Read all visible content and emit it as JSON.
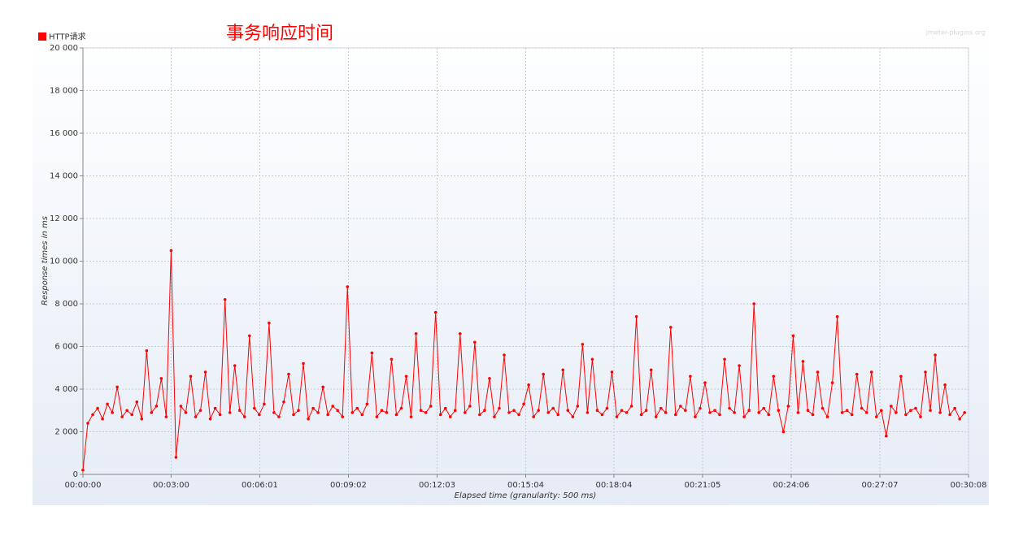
{
  "chart_data": {
    "type": "line",
    "title": "事务响应时间",
    "watermark": "jmeter-plugins.org",
    "x_label": "Elapsed time (granularity: 500 ms)",
    "y_label": "Response times in ms",
    "xlim": [
      0,
      1808
    ],
    "ylim": [
      0,
      20000
    ],
    "xticks": [
      {
        "value": 0,
        "label": "00:00:00"
      },
      {
        "value": 180,
        "label": "00:03:00"
      },
      {
        "value": 361,
        "label": "00:06:01"
      },
      {
        "value": 542,
        "label": "00:09:02"
      },
      {
        "value": 723,
        "label": "00:12:03"
      },
      {
        "value": 904,
        "label": "00:15:04"
      },
      {
        "value": 1084,
        "label": "00:18:04"
      },
      {
        "value": 1265,
        "label": "00:21:05"
      },
      {
        "value": 1446,
        "label": "00:24:06"
      },
      {
        "value": 1627,
        "label": "00:27:07"
      },
      {
        "value": 1808,
        "label": "00:30:08"
      }
    ],
    "yticks": [
      0,
      {
        "value": 2000,
        "label": "2 000"
      },
      {
        "value": 4000,
        "label": "4 000"
      },
      {
        "value": 6000,
        "label": "6 000"
      },
      {
        "value": 8000,
        "label": "8 000"
      },
      {
        "value": 10000,
        "label": "10 000"
      },
      {
        "value": 12000,
        "label": "12 000"
      },
      {
        "value": 14000,
        "label": "14 000"
      },
      {
        "value": 16000,
        "label": "16 000"
      },
      {
        "value": 18000,
        "label": "18 000"
      },
      {
        "value": 20000,
        "label": "20 000"
      }
    ],
    "grid": true,
    "legend": "top-left",
    "x": [
      0,
      10,
      20,
      30,
      40,
      50,
      60,
      70,
      80,
      90,
      100,
      110,
      120,
      130,
      140,
      150,
      160,
      170,
      180,
      190,
      200,
      210,
      220,
      230,
      240,
      250,
      260,
      270,
      280,
      290,
      300,
      310,
      320,
      330,
      340,
      350,
      360,
      370,
      380,
      390,
      400,
      410,
      420,
      430,
      440,
      450,
      460,
      470,
      480,
      490,
      500,
      510,
      520,
      530,
      540,
      550,
      560,
      570,
      580,
      590,
      600,
      610,
      620,
      630,
      640,
      650,
      660,
      670,
      680,
      690,
      700,
      710,
      720,
      730,
      740,
      750,
      760,
      770,
      780,
      790,
      800,
      810,
      820,
      830,
      840,
      850,
      860,
      870,
      880,
      890,
      900,
      910,
      920,
      930,
      940,
      950,
      960,
      970,
      980,
      990,
      1000,
      1010,
      1020,
      1030,
      1040,
      1050,
      1060,
      1070,
      1080,
      1090,
      1100,
      1110,
      1120,
      1130,
      1140,
      1150,
      1160,
      1170,
      1180,
      1190,
      1200,
      1210,
      1220,
      1230,
      1240,
      1250,
      1260,
      1270,
      1280,
      1290,
      1300,
      1310,
      1320,
      1330,
      1340,
      1350,
      1360,
      1370,
      1380,
      1390,
      1400,
      1410,
      1420,
      1430,
      1440,
      1450,
      1460,
      1470,
      1480,
      1490,
      1500,
      1510,
      1520,
      1530,
      1540,
      1550,
      1560,
      1570,
      1580,
      1590,
      1600,
      1610,
      1620,
      1630,
      1640,
      1650,
      1660,
      1670,
      1680,
      1690,
      1700,
      1710,
      1720,
      1730,
      1740,
      1750,
      1760,
      1770,
      1780,
      1790,
      1800
    ],
    "series": [
      {
        "name": "HTTP请求",
        "color": "#ff0000",
        "values": [
          200,
          2400,
          2800,
          3100,
          2600,
          3300,
          2900,
          4100,
          2700,
          3000,
          2800,
          3400,
          2600,
          5800,
          2900,
          3200,
          4500,
          2700,
          10500,
          800,
          3200,
          2900,
          4600,
          2700,
          3000,
          4800,
          2600,
          3100,
          2800,
          8200,
          2900,
          5100,
          3000,
          2700,
          6500,
          3100,
          2800,
          3300,
          7100,
          2900,
          2700,
          3400,
          4700,
          2800,
          3000,
          5200,
          2600,
          3100,
          2900,
          4100,
          2800,
          3200,
          3000,
          2700,
          8800,
          2900,
          3100,
          2800,
          3300,
          5700,
          2700,
          3000,
          2900,
          5400,
          2800,
          3100,
          4600,
          2700,
          6600,
          3000,
          2900,
          3200,
          7600,
          2800,
          3100,
          2700,
          3000,
          6600,
          2900,
          3200,
          6200,
          2800,
          3000,
          4500,
          2700,
          3100,
          5600,
          2900,
          3000,
          2800,
          3300,
          4200,
          2700,
          3000,
          4700,
          2900,
          3100,
          2800,
          4900,
          3000,
          2700,
          3200,
          6100,
          2900,
          5400,
          3000,
          2800,
          3100,
          4800,
          2700,
          3000,
          2900,
          3200,
          7400,
          2800,
          3000,
          4900,
          2700,
          3100,
          2900,
          6900,
          2800,
          3200,
          3000,
          4600,
          2700,
          3100,
          4300,
          2900,
          3000,
          2800,
          5400,
          3100,
          2900,
          5100,
          2700,
          3000,
          8000,
          2900,
          3100,
          2800,
          4600,
          3000,
          2000,
          3200,
          6500,
          2900,
          5300,
          3000,
          2800,
          4800,
          3100,
          2700,
          4300,
          7400,
          2900,
          3000,
          2800,
          4700,
          3100,
          2900,
          4800,
          2700,
          3000,
          1800,
          3200,
          2900,
          4600,
          2800,
          3000,
          3100,
          2700,
          4800,
          3000,
          5600,
          2900,
          4200,
          2800,
          3100,
          2600,
          2900
        ]
      }
    ]
  }
}
